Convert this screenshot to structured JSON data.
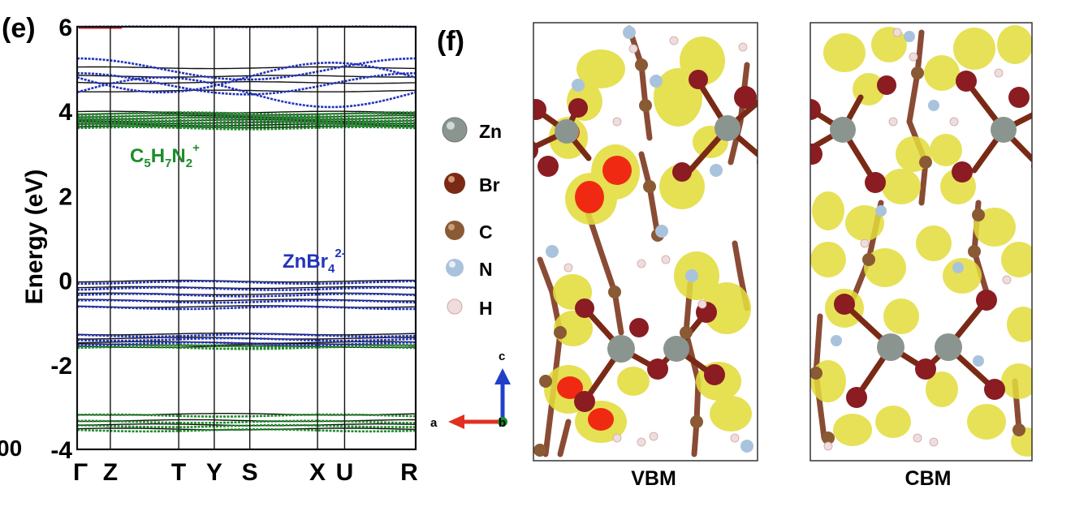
{
  "band_panel": {
    "panel_label": "(e)",
    "cut_off_tick": "00",
    "ylabel": "Energy (eV)",
    "y_ticks": [
      "6",
      "4",
      "2",
      "0",
      "-2",
      "-4"
    ],
    "k_labels": [
      "Γ",
      "Z",
      "T",
      "Y",
      "S",
      "X",
      "U",
      "R"
    ],
    "label_organic": "C5H7N2+",
    "label_inorganic": "ZnBr42-",
    "colors": {
      "organic": "#1e8c2a",
      "inorganic": "#2233bb",
      "black_bands": "#101010"
    }
  },
  "chart_data": {
    "type": "line",
    "ylabel": "Energy (eV)",
    "ylim": [
      -4,
      6
    ],
    "x_ticks": [
      "Γ",
      "Z",
      "T",
      "Y",
      "S",
      "X",
      "U",
      "R"
    ],
    "series": [
      {
        "name": "C5H7N2+",
        "bands_eV": [
          3.6,
          3.65,
          3.7,
          3.75,
          3.8,
          3.85,
          3.9,
          3.95,
          -1.55,
          -1.6,
          -3.2,
          -3.35,
          -3.45,
          -3.55
        ]
      },
      {
        "name": "ZnBr42-",
        "bands_eV": [
          6.0,
          5.0,
          4.8,
          4.65,
          4.45,
          -0.05,
          -0.2,
          -0.35,
          -0.5,
          -0.65,
          -1.3,
          -1.4,
          -1.5
        ]
      }
    ]
  },
  "structure_panel": {
    "panel_label": "(f)",
    "legend": [
      {
        "element": "Zn",
        "color": "#8b958f"
      },
      {
        "element": "Br",
        "color": "#7a2a14"
      },
      {
        "element": "C",
        "color": "#8a5a35"
      },
      {
        "element": "N",
        "color": "#a9c3dd"
      },
      {
        "element": "H",
        "color": "#f1dcdc"
      }
    ],
    "axes_labels": {
      "a": "a",
      "b": "b",
      "c": "c"
    },
    "vbm_label": "VBM",
    "cbm_label": "CBM",
    "colors": {
      "isosurface": "#e3dc3c",
      "isosurface_core": "#f02a12",
      "bond": "#8a4b35"
    }
  }
}
